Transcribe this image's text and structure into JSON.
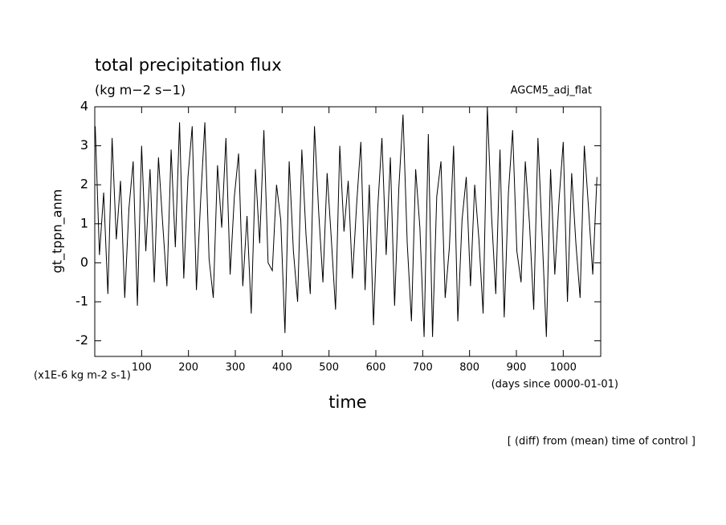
{
  "chart_data": {
    "type": "line",
    "title": "total precipitation flux",
    "subtitle": "(kg m−2 s−1)",
    "annotation_right": "AGCM5_adj_flat",
    "y_label": "gt_tppn_anm",
    "x_label": "time",
    "y_unit_note": "(x1E-6 kg m-2 s-1)",
    "x_unit_note": "(days since 0000-01-01)",
    "footer": "[ (diff) from (mean) time of control ]",
    "x": [
      1,
      10,
      19,
      28,
      37,
      46,
      55,
      64,
      73,
      82,
      91,
      100,
      109,
      118,
      127,
      136,
      145,
      154,
      163,
      172,
      181,
      190,
      199,
      208,
      217,
      226,
      235,
      244,
      253,
      262,
      271,
      280,
      289,
      298,
      307,
      316,
      325,
      334,
      343,
      352,
      361,
      370,
      379,
      388,
      397,
      406,
      415,
      424,
      433,
      442,
      451,
      460,
      469,
      478,
      487,
      496,
      505,
      514,
      523,
      532,
      541,
      550,
      559,
      568,
      577,
      586,
      595,
      604,
      613,
      622,
      631,
      640,
      649,
      658,
      667,
      676,
      685,
      694,
      703,
      712,
      721,
      730,
      739,
      748,
      757,
      766,
      775,
      784,
      793,
      802,
      811,
      820,
      829,
      838,
      847,
      856,
      865,
      874,
      883,
      892,
      901,
      910,
      919,
      928,
      937,
      946,
      955,
      964,
      973,
      982,
      991,
      1000,
      1009,
      1018,
      1027,
      1036,
      1045,
      1054,
      1063,
      1072
    ],
    "series": [
      {
        "name": "gt_tppn_anm",
        "color": "#000000",
        "values": [
          3.5,
          0.2,
          1.8,
          -0.8,
          3.2,
          0.6,
          2.1,
          -0.9,
          1.4,
          2.6,
          -1.1,
          3.0,
          0.3,
          2.4,
          -0.5,
          2.7,
          1.0,
          -0.6,
          2.9,
          0.4,
          3.6,
          -0.4,
          2.2,
          3.5,
          -0.7,
          1.6,
          3.6,
          0.1,
          -0.9,
          2.5,
          0.9,
          3.2,
          -0.3,
          1.7,
          2.8,
          -0.6,
          1.2,
          -1.3,
          2.4,
          0.5,
          3.4,
          0.0,
          -0.2,
          2.0,
          1.1,
          -1.8,
          2.6,
          0.3,
          -1.0,
          2.9,
          0.7,
          -0.8,
          3.5,
          1.3,
          -0.5,
          2.3,
          0.6,
          -1.2,
          3.0,
          0.8,
          2.1,
          -0.4,
          1.5,
          3.1,
          -0.7,
          2.0,
          -1.6,
          1.4,
          3.2,
          0.2,
          2.7,
          -1.1,
          1.9,
          3.8,
          0.5,
          -1.5,
          2.4,
          0.9,
          -1.9,
          3.3,
          -1.9,
          1.7,
          2.6,
          -0.9,
          0.4,
          3.0,
          -1.5,
          1.1,
          2.2,
          -0.6,
          2.0,
          0.6,
          -1.3,
          4.0,
          1.2,
          -0.8,
          2.9,
          -1.4,
          1.8,
          3.4,
          0.3,
          -0.5,
          2.6,
          1.0,
          -1.2,
          3.2,
          0.7,
          -1.9,
          2.4,
          -0.3,
          1.6,
          3.1,
          -1.0,
          2.3,
          0.5,
          -0.9,
          3.0,
          1.4,
          -0.3,
          2.2
        ]
      }
    ],
    "xlim": [
      0,
      1080
    ],
    "ylim": [
      -2.4,
      4
    ],
    "xticks": [
      100,
      200,
      300,
      400,
      500,
      600,
      700,
      800,
      900,
      1000
    ],
    "yticks": [
      -2,
      -1,
      0,
      1,
      2,
      3,
      4
    ]
  }
}
